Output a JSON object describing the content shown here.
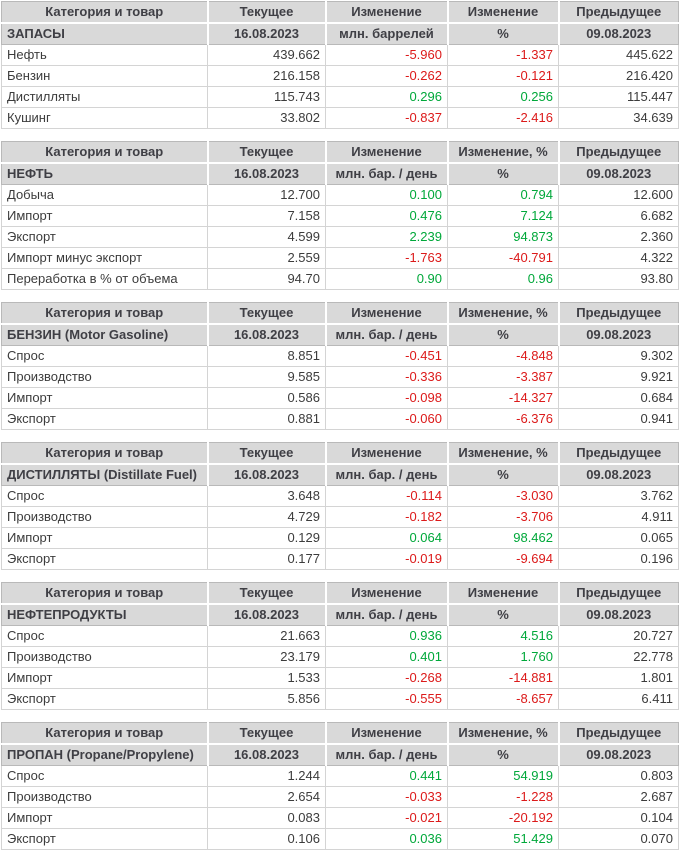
{
  "colors": {
    "header_bg": "#d9d9d9",
    "header_text": "#3f3f45",
    "body_text": "#3c3c3c",
    "positive": "#00a83a",
    "negative": "#dc1a1a",
    "outer_border": "#b9b9b9",
    "grid_border": "#d4d4d4",
    "header_separator": "#ffffff",
    "row_bg": "#ffffff"
  },
  "tables": [
    {
      "section": "ЗАПАСЫ",
      "header_top": [
        "Категория и товар",
        "Текущее",
        "Изменение",
        "Изменение",
        "Предыдущее"
      ],
      "header_bottom": [
        "ЗАПАСЫ",
        "16.08.2023",
        "млн. баррелей",
        "%",
        "09.08.2023"
      ],
      "rows": [
        [
          "Нефть",
          "439.662",
          "-5.960",
          "-1.337",
          "445.622"
        ],
        [
          "Бензин",
          "216.158",
          "-0.262",
          "-0.121",
          "216.420"
        ],
        [
          "Дистилляты",
          "115.743",
          "0.296",
          "0.256",
          "115.447"
        ],
        [
          "Кушинг",
          "33.802",
          "-0.837",
          "-2.416",
          "34.639"
        ]
      ]
    },
    {
      "section": "НЕФТЬ",
      "header_top": [
        "Категория и товар",
        "Текущее",
        "Изменение",
        "Изменение, %",
        "Предыдущее"
      ],
      "header_bottom": [
        "НЕФТЬ",
        "16.08.2023",
        "млн. бар. / день",
        "%",
        "09.08.2023"
      ],
      "rows": [
        [
          "Добыча",
          "12.700",
          "0.100",
          "0.794",
          "12.600"
        ],
        [
          "Импорт",
          "7.158",
          "0.476",
          "7.124",
          "6.682"
        ],
        [
          "Экспорт",
          "4.599",
          "2.239",
          "94.873",
          "2.360"
        ],
        [
          "Импорт минус экспорт",
          "2.559",
          "-1.763",
          "-40.791",
          "4.322"
        ],
        [
          "Переработка в % от объема",
          "94.70",
          "0.90",
          "0.96",
          "93.80"
        ]
      ]
    },
    {
      "section": "БЕНЗИН (Motor Gasoline)",
      "header_top": [
        "Категория и товар",
        "Текущее",
        "Изменение",
        "Изменение, %",
        "Предыдущее"
      ],
      "header_bottom": [
        "БЕНЗИН (Motor Gasoline)",
        "16.08.2023",
        "млн. бар. / день",
        "%",
        "09.08.2023"
      ],
      "rows": [
        [
          "Спрос",
          "8.851",
          "-0.451",
          "-4.848",
          "9.302"
        ],
        [
          "Производство",
          "9.585",
          "-0.336",
          "-3.387",
          "9.921"
        ],
        [
          "Импорт",
          "0.586",
          "-0.098",
          "-14.327",
          "0.684"
        ],
        [
          "Экспорт",
          "0.881",
          "-0.060",
          "-6.376",
          "0.941"
        ]
      ]
    },
    {
      "section": "ДИСТИЛЛЯТЫ (Distillate Fuel)",
      "header_top": [
        "Категория и товар",
        "Текущее",
        "Изменение",
        "Изменение, %",
        "Предыдущее"
      ],
      "header_bottom": [
        "ДИСТИЛЛЯТЫ (Distillate Fuel)",
        "16.08.2023",
        "млн. бар. / день",
        "%",
        "09.08.2023"
      ],
      "rows": [
        [
          "Спрос",
          "3.648",
          "-0.114",
          "-3.030",
          "3.762"
        ],
        [
          "Производство",
          "4.729",
          "-0.182",
          "-3.706",
          "4.911"
        ],
        [
          "Импорт",
          "0.129",
          "0.064",
          "98.462",
          "0.065"
        ],
        [
          "Экспорт",
          "0.177",
          "-0.019",
          "-9.694",
          "0.196"
        ]
      ]
    },
    {
      "section": "НЕФТЕПРОДУКТЫ",
      "header_top": [
        "Категория и товар",
        "Текущее",
        "Изменение",
        "Изменение",
        "Предыдущее"
      ],
      "header_bottom": [
        "НЕФТЕПРОДУКТЫ",
        "16.08.2023",
        "млн. бар. / день",
        "%",
        "09.08.2023"
      ],
      "rows": [
        [
          "Спрос",
          "21.663",
          "0.936",
          "4.516",
          "20.727"
        ],
        [
          "Производство",
          "23.179",
          "0.401",
          "1.760",
          "22.778"
        ],
        [
          "Импорт",
          "1.533",
          "-0.268",
          "-14.881",
          "1.801"
        ],
        [
          "Экспорт",
          "5.856",
          "-0.555",
          "-8.657",
          "6.411"
        ]
      ]
    },
    {
      "section": "ПРОПАН (Propane/Propylene)",
      "header_top": [
        "Категория и товар",
        "Текущее",
        "Изменение",
        "Изменение, %",
        "Предыдущее"
      ],
      "header_bottom": [
        "ПРОПАН (Propane/Propylene)",
        "16.08.2023",
        "млн. бар. / день",
        "%",
        "09.08.2023"
      ],
      "rows": [
        [
          "Спрос",
          "1.244",
          "0.441",
          "54.919",
          "0.803"
        ],
        [
          "Производство",
          "2.654",
          "-0.033",
          "-1.228",
          "2.687"
        ],
        [
          "Импорт",
          "0.083",
          "-0.021",
          "-20.192",
          "0.104"
        ],
        [
          "Экспорт",
          "0.106",
          "0.036",
          "51.429",
          "0.070"
        ]
      ]
    }
  ]
}
